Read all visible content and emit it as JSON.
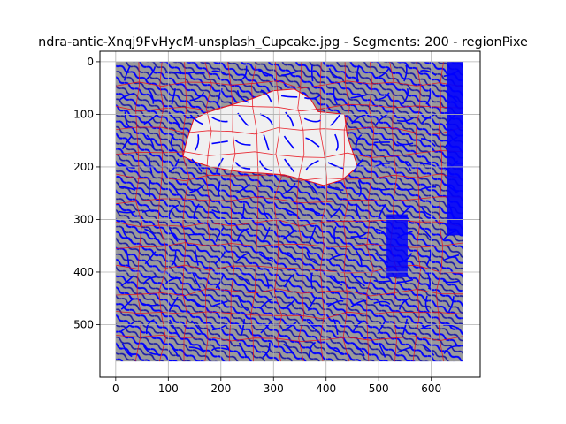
{
  "chart_data": {
    "type": "heatmap",
    "title": "ndra-antic-Xnqj9FvHycM-unsplash_Cupcake.jpg - Segments: 200 - regionPixe",
    "xlabel": "",
    "ylabel": "",
    "image_extent": {
      "x": [
        0,
        660
      ],
      "y": [
        0,
        570
      ]
    },
    "xlim": [
      -30,
      693
    ],
    "ylim": [
      600,
      -20
    ],
    "y_inverted": true,
    "grid": true,
    "x_ticks": [
      0,
      100,
      200,
      300,
      400,
      500,
      600
    ],
    "y_ticks": [
      0,
      100,
      200,
      300,
      400,
      500
    ],
    "x_tick_labels": [
      "0",
      "100",
      "200",
      "300",
      "400",
      "500",
      "600"
    ],
    "y_tick_labels": [
      "0",
      "100",
      "200",
      "300",
      "400",
      "500"
    ],
    "segments": 200,
    "segment_grid": {
      "cols": 15,
      "rows": 13
    },
    "colors": {
      "background_segment": "#9a9a9a",
      "highlight_segment": "#f0f0f0",
      "boundary": "#e8121c",
      "overlay_stroke": "#0000ff",
      "grid": "#b0b0b0"
    },
    "highlight_region": [
      [
        148,
        110
      ],
      [
        170,
        98
      ],
      [
        210,
        85
      ],
      [
        260,
        70
      ],
      [
        300,
        55
      ],
      [
        340,
        52
      ],
      [
        370,
        70
      ],
      [
        385,
        95
      ],
      [
        435,
        100
      ],
      [
        440,
        140
      ],
      [
        450,
        170
      ],
      [
        460,
        200
      ],
      [
        430,
        225
      ],
      [
        395,
        235
      ],
      [
        360,
        225
      ],
      [
        320,
        215
      ],
      [
        280,
        212
      ],
      [
        240,
        210
      ],
      [
        210,
        205
      ],
      [
        180,
        200
      ],
      [
        150,
        190
      ],
      [
        128,
        180
      ],
      [
        135,
        150
      ]
    ]
  }
}
